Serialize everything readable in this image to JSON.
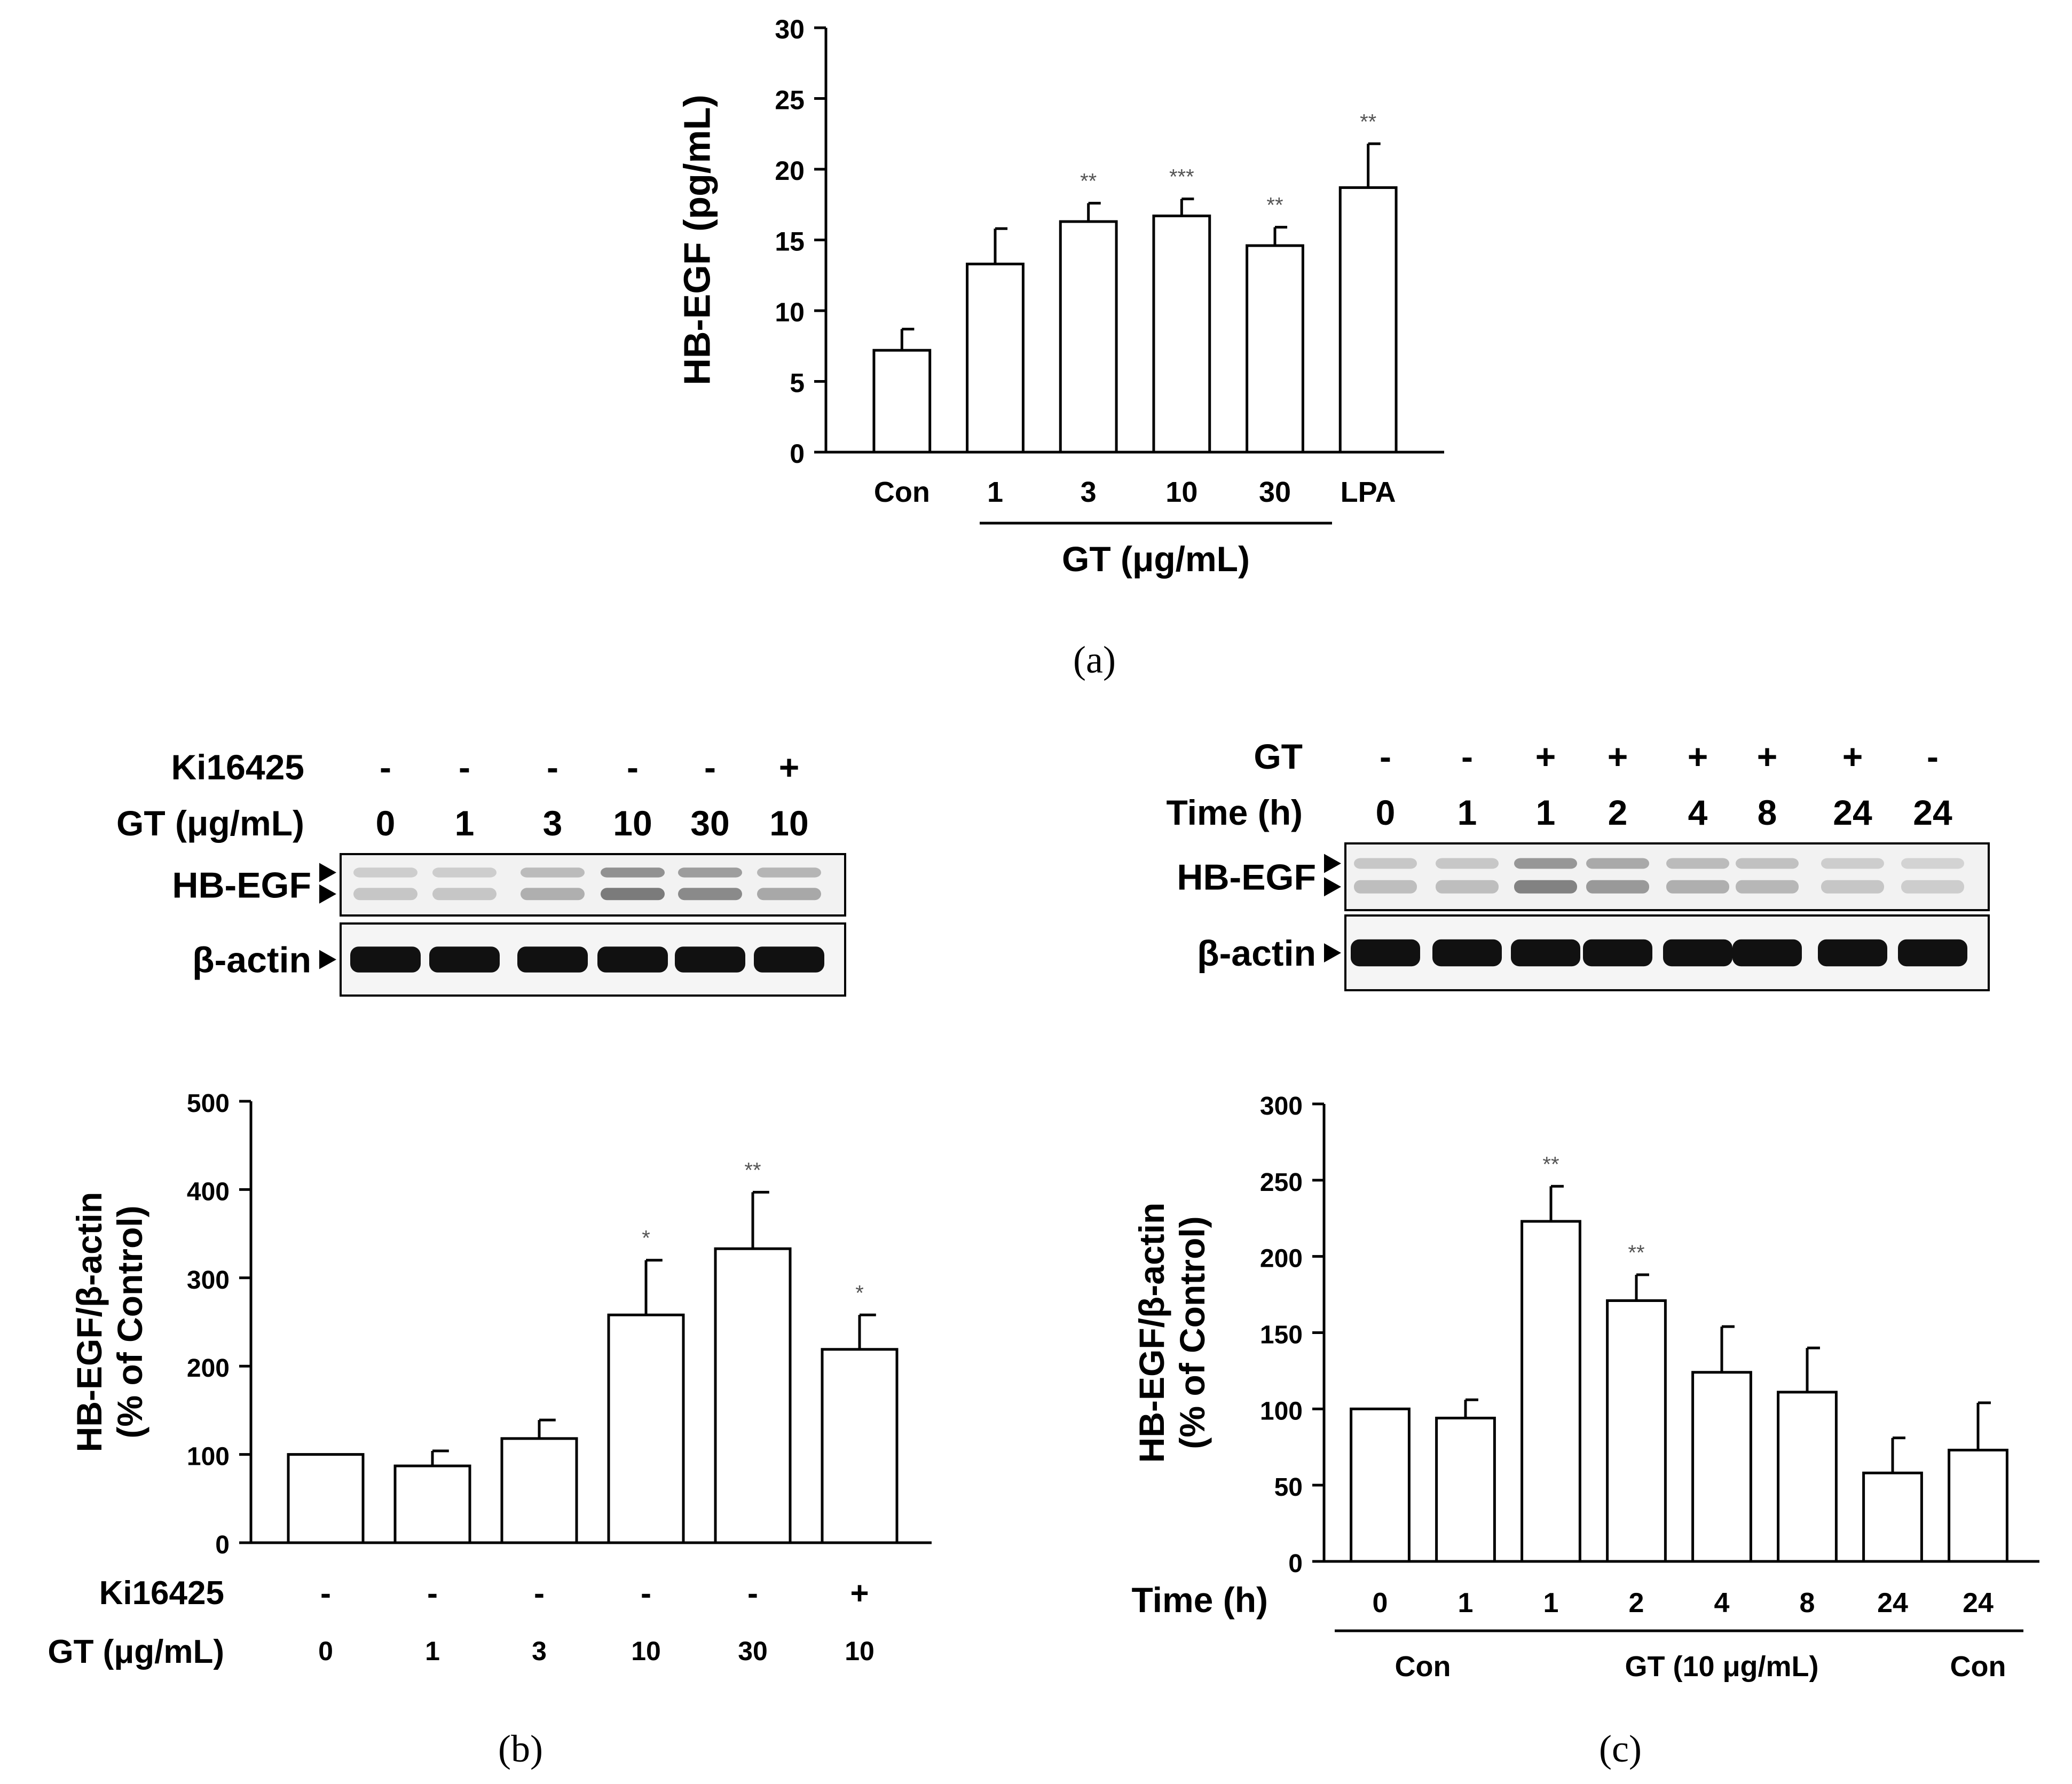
{
  "panel_a": {
    "caption": "(a)",
    "group_label": "GT (μg/mL)"
  },
  "panel_b": {
    "caption": "(b)",
    "blot": {
      "rows": [
        {
          "label": "Ki16425",
          "values": [
            "-",
            "-",
            "-",
            "-",
            "-",
            "+"
          ]
        },
        {
          "label": "GT (μg/mL)",
          "values": [
            "0",
            "1",
            "3",
            "10",
            "30",
            "10"
          ]
        }
      ],
      "bands": [
        "HB-EGF",
        "β-actin"
      ]
    },
    "treatment_rows": [
      {
        "label": "Ki16425",
        "values": [
          "-",
          "-",
          "-",
          "-",
          "-",
          "+"
        ]
      },
      {
        "label": "GT (μg/mL)",
        "values": [
          "0",
          "1",
          "3",
          "10",
          "30",
          "10"
        ]
      }
    ]
  },
  "panel_c": {
    "caption": "(c)",
    "blot": {
      "rows": [
        {
          "label": "GT",
          "values": [
            "-",
            "-",
            "+",
            "+",
            "+",
            "+",
            "+",
            "-"
          ]
        },
        {
          "label": "Time (h)",
          "values": [
            "0",
            "1",
            "1",
            "2",
            "4",
            "8",
            "24",
            "24"
          ]
        }
      ],
      "bands": [
        "HB-EGF",
        "β-actin"
      ]
    },
    "time_row_label": "Time (h)",
    "groups": [
      {
        "label": "Con"
      },
      {
        "label": "GT (10 μg/mL)"
      },
      {
        "label": "Con"
      }
    ]
  },
  "chart_data": [
    {
      "panel": "a",
      "type": "bar",
      "categories": [
        "Con",
        "1",
        "3",
        "10",
        "30",
        "LPA"
      ],
      "values": [
        7.2,
        13.3,
        16.3,
        16.7,
        14.6,
        18.7
      ],
      "errors": [
        1.5,
        2.5,
        1.3,
        1.2,
        1.3,
        3.1
      ],
      "significance": [
        "",
        "",
        "**",
        "***",
        "**",
        "**"
      ],
      "ylabel": "HB-EGF (pg/mL)",
      "xlabel": "",
      "ylim": [
        0,
        30
      ],
      "yticks": [
        0,
        5,
        10,
        15,
        20,
        25,
        30
      ],
      "grid": false
    },
    {
      "panel": "b",
      "type": "bar",
      "categories": [
        "0",
        "1",
        "3",
        "10",
        "30",
        "10"
      ],
      "values": [
        100,
        87,
        118,
        258,
        333,
        219
      ],
      "errors": [
        0,
        17,
        21,
        62,
        64,
        39
      ],
      "significance": [
        "",
        "",
        "",
        "*",
        "**",
        "*"
      ],
      "ylabel": "HB-EGF/β-actin (% of Control)",
      "xlabel": "",
      "ylim": [
        0,
        500
      ],
      "yticks": [
        0,
        100,
        200,
        300,
        400,
        500
      ],
      "grid": false
    },
    {
      "panel": "c",
      "type": "bar",
      "categories": [
        "0",
        "1",
        "1",
        "2",
        "4",
        "8",
        "24",
        "24"
      ],
      "values": [
        100,
        94,
        223,
        171,
        124,
        111,
        58,
        73
      ],
      "errors": [
        0,
        12,
        23,
        17,
        30,
        29,
        23,
        31
      ],
      "significance": [
        "",
        "",
        "**",
        "**",
        "",
        "",
        "",
        ""
      ],
      "ylabel": "HB-EGF/β-actin (% of Control)",
      "xlabel": "Time (h)",
      "ylim": [
        0,
        300
      ],
      "yticks": [
        0,
        50,
        100,
        150,
        200,
        250,
        300
      ],
      "grid": false
    }
  ]
}
